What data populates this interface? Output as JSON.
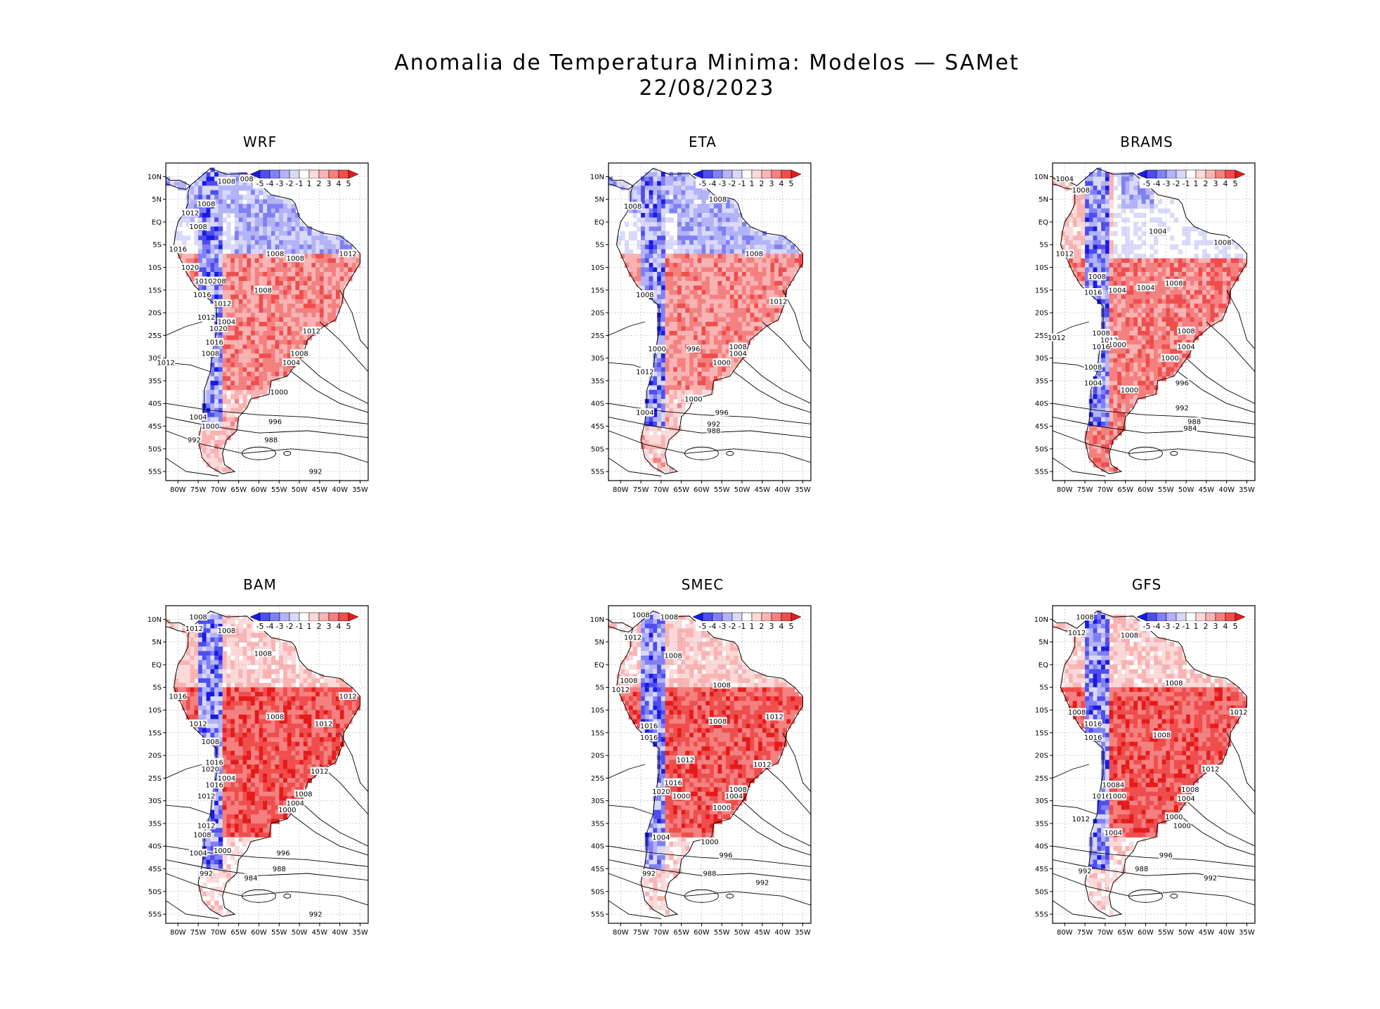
{
  "figure": {
    "title_line1": "Anomalia de Temperatura Minima: Modelos — SAMet",
    "title_line2": "22/08/2023"
  },
  "colorbar": {
    "labels": [
      "-5",
      "-4",
      "-3",
      "-2",
      "-1",
      "1",
      "2",
      "3",
      "4",
      "5"
    ],
    "colors": [
      "#1a1ae6",
      "#4d4df0",
      "#8080f5",
      "#b3b3fa",
      "#d9d9fc",
      "#ffffff",
      "#fcd9d9",
      "#fab3b3",
      "#f58080",
      "#f04d4d",
      "#e61a1a"
    ]
  },
  "axes": {
    "lat_labels": [
      "10N",
      "5N",
      "EQ",
      "5S",
      "10S",
      "15S",
      "20S",
      "25S",
      "30S",
      "35S",
      "40S",
      "45S",
      "50S",
      "55S"
    ],
    "lon_labels": [
      "80W",
      "75W",
      "70W",
      "65W",
      "60W",
      "55W",
      "50W",
      "45W",
      "40W",
      "35W"
    ]
  },
  "panels": [
    {
      "name": "WRF",
      "anomaly_pattern": "north cool / south warm",
      "isobars": [
        {
          "text": "1008",
          "lon": -68,
          "lat": 9
        },
        {
          "text": "008",
          "lon": -63,
          "lat": 9.5
        },
        {
          "text": "1008",
          "lon": -73,
          "lat": 4
        },
        {
          "text": "1012",
          "lon": -77,
          "lat": 2
        },
        {
          "text": "1008",
          "lon": -75,
          "lat": -1
        },
        {
          "text": "1016",
          "lon": -80,
          "lat": -6
        },
        {
          "text": "1008",
          "lon": -56,
          "lat": -7
        },
        {
          "text": "1008",
          "lon": -51,
          "lat": -8
        },
        {
          "text": "1012",
          "lon": -38,
          "lat": -7
        },
        {
          "text": "1020",
          "lon": -77,
          "lat": -10
        },
        {
          "text": "1010208",
          "lon": -72,
          "lat": -13
        },
        {
          "text": "1016",
          "lon": -74,
          "lat": -16
        },
        {
          "text": "1008",
          "lon": -59,
          "lat": -15
        },
        {
          "text": "1012",
          "lon": -69,
          "lat": -18
        },
        {
          "text": "1012",
          "lon": -73,
          "lat": -21
        },
        {
          "text": "1004",
          "lon": -68,
          "lat": -22
        },
        {
          "text": "1020",
          "lon": -70,
          "lat": -23.5
        },
        {
          "text": "1012",
          "lon": -47,
          "lat": -24
        },
        {
          "text": "1016",
          "lon": -71,
          "lat": -26.5
        },
        {
          "text": "1008",
          "lon": -72,
          "lat": -29
        },
        {
          "text": "1008",
          "lon": -50,
          "lat": -29
        },
        {
          "text": "1004",
          "lon": -52,
          "lat": -31
        },
        {
          "text": "1012",
          "lon": -83,
          "lat": -31
        },
        {
          "text": "1000",
          "lon": -55,
          "lat": -37.5
        },
        {
          "text": "1004",
          "lon": -75,
          "lat": -43
        },
        {
          "text": "996",
          "lon": -56,
          "lat": -44
        },
        {
          "text": "1000",
          "lon": -72,
          "lat": -45
        },
        {
          "text": "992",
          "lon": -76,
          "lat": -48
        },
        {
          "text": "988",
          "lon": -57,
          "lat": -48
        },
        {
          "text": "992",
          "lon": -46,
          "lat": -55
        }
      ]
    },
    {
      "name": "ETA",
      "anomaly_pattern": "north cool / south warm",
      "isobars": [
        {
          "text": "1008",
          "lon": -56,
          "lat": 5
        },
        {
          "text": "1008",
          "lon": -77,
          "lat": 3.5
        },
        {
          "text": "1008",
          "lon": -47,
          "lat": -7
        },
        {
          "text": "1008",
          "lon": -74,
          "lat": -16
        },
        {
          "text": "1012",
          "lon": -41,
          "lat": -17.5
        },
        {
          "text": "1000",
          "lon": -71,
          "lat": -28
        },
        {
          "text": "996",
          "lon": -62,
          "lat": -28
        },
        {
          "text": "1008",
          "lon": -51,
          "lat": -27.5
        },
        {
          "text": "1004",
          "lon": -51,
          "lat": -29
        },
        {
          "text": "1000",
          "lon": -55,
          "lat": -31
        },
        {
          "text": "1012",
          "lon": -74,
          "lat": -33
        },
        {
          "text": "1000",
          "lon": -62,
          "lat": -39
        },
        {
          "text": "1004",
          "lon": -74,
          "lat": -42
        },
        {
          "text": "996",
          "lon": -55,
          "lat": -42
        },
        {
          "text": "992",
          "lon": -57,
          "lat": -44.5
        },
        {
          "text": "988",
          "lon": -57,
          "lat": -46
        }
      ]
    },
    {
      "name": "BRAMS",
      "anomaly_pattern": "mixed north / warm centre-south",
      "isobars": [
        {
          "text": "1004",
          "lon": -80,
          "lat": 9.5
        },
        {
          "text": "1008",
          "lon": -76,
          "lat": 7
        },
        {
          "text": "1004",
          "lon": -57,
          "lat": -2
        },
        {
          "text": "1008",
          "lon": -41,
          "lat": -4.5
        },
        {
          "text": "1012",
          "lon": -80,
          "lat": -7
        },
        {
          "text": "1008",
          "lon": -72,
          "lat": -12
        },
        {
          "text": "1004",
          "lon": -60,
          "lat": -14.5
        },
        {
          "text": "1008",
          "lon": -53,
          "lat": -13.5
        },
        {
          "text": "1016",
          "lon": -73,
          "lat": -15.5
        },
        {
          "text": "1004",
          "lon": -67,
          "lat": -15
        },
        {
          "text": "1008",
          "lon": -50,
          "lat": -24
        },
        {
          "text": "1008",
          "lon": -71,
          "lat": -24.5
        },
        {
          "text": "1012",
          "lon": -82,
          "lat": -25.5
        },
        {
          "text": "1012",
          "lon": -69,
          "lat": -26
        },
        {
          "text": "1000",
          "lon": -67,
          "lat": -27
        },
        {
          "text": "1016",
          "lon": -71,
          "lat": -27.5
        },
        {
          "text": "1004",
          "lon": -50,
          "lat": -27.5
        },
        {
          "text": "1000",
          "lon": -54,
          "lat": -30
        },
        {
          "text": "1008",
          "lon": -73,
          "lat": -32
        },
        {
          "text": "1004",
          "lon": -73,
          "lat": -35.5
        },
        {
          "text": "996",
          "lon": -51,
          "lat": -35.5
        },
        {
          "text": "1000",
          "lon": -64,
          "lat": -37
        },
        {
          "text": "992",
          "lon": -51,
          "lat": -41
        },
        {
          "text": "988",
          "lon": -48,
          "lat": -44
        },
        {
          "text": "984",
          "lon": -49,
          "lat": -45.5
        }
      ]
    },
    {
      "name": "BAM",
      "anomaly_pattern": "widespread warm",
      "isobars": [
        {
          "text": "1008",
          "lon": -75,
          "lat": 10.5
        },
        {
          "text": "1012",
          "lon": -76,
          "lat": 8
        },
        {
          "text": "1008",
          "lon": -68,
          "lat": 7.5
        },
        {
          "text": "1008",
          "lon": -59,
          "lat": 2.5
        },
        {
          "text": "1016",
          "lon": -80,
          "lat": -7
        },
        {
          "text": "1012",
          "lon": -38,
          "lat": -7
        },
        {
          "text": "1008",
          "lon": -56,
          "lat": -11.5
        },
        {
          "text": "1012",
          "lon": -44,
          "lat": -13
        },
        {
          "text": "1012",
          "lon": -75,
          "lat": -13
        },
        {
          "text": "1008",
          "lon": -72,
          "lat": -17
        },
        {
          "text": "1016",
          "lon": -71,
          "lat": -21.5
        },
        {
          "text": "1020",
          "lon": -72,
          "lat": -23
        },
        {
          "text": "1012",
          "lon": -45,
          "lat": -23.5
        },
        {
          "text": "1004",
          "lon": -68,
          "lat": -25
        },
        {
          "text": "1016",
          "lon": -71,
          "lat": -26.5
        },
        {
          "text": "1012",
          "lon": -73,
          "lat": -29
        },
        {
          "text": "1008",
          "lon": -49,
          "lat": -28.5
        },
        {
          "text": "1004",
          "lon": -51,
          "lat": -30.5
        },
        {
          "text": "1000",
          "lon": -53,
          "lat": -32
        },
        {
          "text": "1012",
          "lon": -73,
          "lat": -35.5
        },
        {
          "text": "1008",
          "lon": -74,
          "lat": -37.5
        },
        {
          "text": "1000",
          "lon": -69,
          "lat": -41
        },
        {
          "text": "1004",
          "lon": -75,
          "lat": -41.5
        },
        {
          "text": "996",
          "lon": -54,
          "lat": -41.5
        },
        {
          "text": "992",
          "lon": -73,
          "lat": -46
        },
        {
          "text": "988",
          "lon": -55,
          "lat": -45
        },
        {
          "text": "984",
          "lon": -62,
          "lat": -47
        },
        {
          "text": "992",
          "lon": -46,
          "lat": -55
        }
      ]
    },
    {
      "name": "SMEC",
      "anomaly_pattern": "widespread warm",
      "isobars": [
        {
          "text": "1008",
          "lon": -75,
          "lat": 11
        },
        {
          "text": "1008",
          "lon": -68,
          "lat": 10.5
        },
        {
          "text": "1012",
          "lon": -77,
          "lat": 6
        },
        {
          "text": "1008",
          "lon": -67,
          "lat": 2
        },
        {
          "text": "1008",
          "lon": -78,
          "lat": -3.5
        },
        {
          "text": "1012",
          "lon": -80,
          "lat": -5.5
        },
        {
          "text": "1008",
          "lon": -55,
          "lat": -4.5
        },
        {
          "text": "1012",
          "lon": -42,
          "lat": -11.5
        },
        {
          "text": "1008",
          "lon": -56,
          "lat": -12.5
        },
        {
          "text": "1016",
          "lon": -73,
          "lat": -13.5
        },
        {
          "text": "1016",
          "lon": -73,
          "lat": -16
        },
        {
          "text": "1012",
          "lon": -64,
          "lat": -21
        },
        {
          "text": "1012",
          "lon": -45,
          "lat": -22
        },
        {
          "text": "1016",
          "lon": -67,
          "lat": -26
        },
        {
          "text": "1008",
          "lon": -51,
          "lat": -27.5
        },
        {
          "text": "1020",
          "lon": -70,
          "lat": -28
        },
        {
          "text": "1004",
          "lon": -52,
          "lat": -29
        },
        {
          "text": "1000",
          "lon": -65,
          "lat": -29
        },
        {
          "text": "1000",
          "lon": -55,
          "lat": -31.5
        },
        {
          "text": "1004",
          "lon": -70,
          "lat": -38
        },
        {
          "text": "1000",
          "lon": -58,
          "lat": -39
        },
        {
          "text": "996",
          "lon": -54,
          "lat": -42
        },
        {
          "text": "992",
          "lon": -73,
          "lat": -46
        },
        {
          "text": "988",
          "lon": -58,
          "lat": -46
        },
        {
          "text": "992",
          "lon": -45,
          "lat": -48
        }
      ]
    },
    {
      "name": "GFS",
      "anomaly_pattern": "widespread warm",
      "isobars": [
        {
          "text": "1008",
          "lon": -75,
          "lat": 10.5
        },
        {
          "text": "1012",
          "lon": -77,
          "lat": 7
        },
        {
          "text": "1008",
          "lon": -64,
          "lat": 6.5
        },
        {
          "text": "1008",
          "lon": -53,
          "lat": -4
        },
        {
          "text": "1008",
          "lon": -77,
          "lat": -10.5
        },
        {
          "text": "1012",
          "lon": -37,
          "lat": -10.5
        },
        {
          "text": "1016",
          "lon": -73,
          "lat": -13
        },
        {
          "text": "1008",
          "lon": -56,
          "lat": -15.5
        },
        {
          "text": "1016",
          "lon": -73,
          "lat": -16
        },
        {
          "text": "1012",
          "lon": -44,
          "lat": -23
        },
        {
          "text": "10084",
          "lon": -68,
          "lat": -26.5
        },
        {
          "text": "1008",
          "lon": -49,
          "lat": -27.5
        },
        {
          "text": "1016",
          "lon": -71,
          "lat": -29
        },
        {
          "text": "1000",
          "lon": -67,
          "lat": -29
        },
        {
          "text": "1004",
          "lon": -50,
          "lat": -29.5
        },
        {
          "text": "1000",
          "lon": -53,
          "lat": -33.5
        },
        {
          "text": "1012",
          "lon": -76,
          "lat": -34
        },
        {
          "text": "1000",
          "lon": -51,
          "lat": -35.5
        },
        {
          "text": "1004",
          "lon": -68,
          "lat": -37
        },
        {
          "text": "996",
          "lon": -55,
          "lat": -42
        },
        {
          "text": "992",
          "lon": -75,
          "lat": -45.5
        },
        {
          "text": "988",
          "lon": -61,
          "lat": -45
        },
        {
          "text": "992",
          "lon": -44,
          "lat": -47
        }
      ]
    }
  ]
}
